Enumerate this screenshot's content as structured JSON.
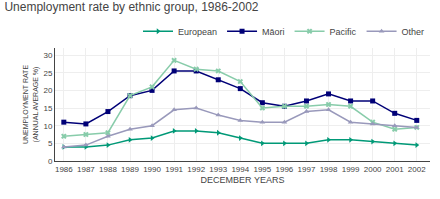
{
  "chart_data": {
    "type": "line",
    "title": "Unemployment rate by ethnic group, 1986-2002",
    "xlabel": "DECEMBER YEARS",
    "ylabel": "UNEMPLOYMENT RATE\n(ANNUAL AVERAGE %)",
    "x": [
      1986,
      1987,
      1988,
      1989,
      1990,
      1991,
      1992,
      1993,
      1994,
      1995,
      1996,
      1997,
      1998,
      1999,
      2000,
      2001,
      2002
    ],
    "series": [
      {
        "name": "European",
        "color": "#009977",
        "marker": "triangle-right",
        "values": [
          4.0,
          4.0,
          4.5,
          6.0,
          6.5,
          8.5,
          8.5,
          8.0,
          6.5,
          5.0,
          5.0,
          5.0,
          6.0,
          6.0,
          5.5,
          5.0,
          4.5
        ]
      },
      {
        "name": "Māori",
        "color": "#000077",
        "marker": "square",
        "values": [
          11.0,
          10.5,
          14.0,
          18.5,
          20.0,
          25.5,
          25.5,
          23.0,
          20.5,
          16.5,
          15.5,
          17.0,
          19.0,
          17.0,
          17.0,
          13.5,
          11.5
        ]
      },
      {
        "name": "Pacific",
        "color": "#88ccaa",
        "marker": "x",
        "values": [
          7.0,
          7.5,
          8.0,
          18.5,
          21.0,
          28.5,
          26.0,
          25.5,
          22.5,
          15.0,
          15.5,
          15.5,
          16.0,
          15.5,
          11.0,
          9.0,
          9.5
        ]
      },
      {
        "name": "Other",
        "color": "#9999bb",
        "marker": "triangle-up",
        "values": [
          4.0,
          4.5,
          7.0,
          9.0,
          10.0,
          14.5,
          15.0,
          13.0,
          11.5,
          11.0,
          11.0,
          14.0,
          14.5,
          11.0,
          10.5,
          10.0,
          9.5
        ]
      }
    ],
    "xlim": [
      1985.6,
      2002.6
    ],
    "xticks": [
      1986,
      1987,
      1988,
      1989,
      1990,
      1991,
      1992,
      1993,
      1994,
      1995,
      1996,
      1997,
      1998,
      1999,
      2000,
      2001,
      2002
    ],
    "ylim": [
      0,
      32
    ],
    "yticks": [
      0,
      5,
      10,
      15,
      20,
      25,
      30
    ],
    "grid": true,
    "legend": "upper right"
  }
}
